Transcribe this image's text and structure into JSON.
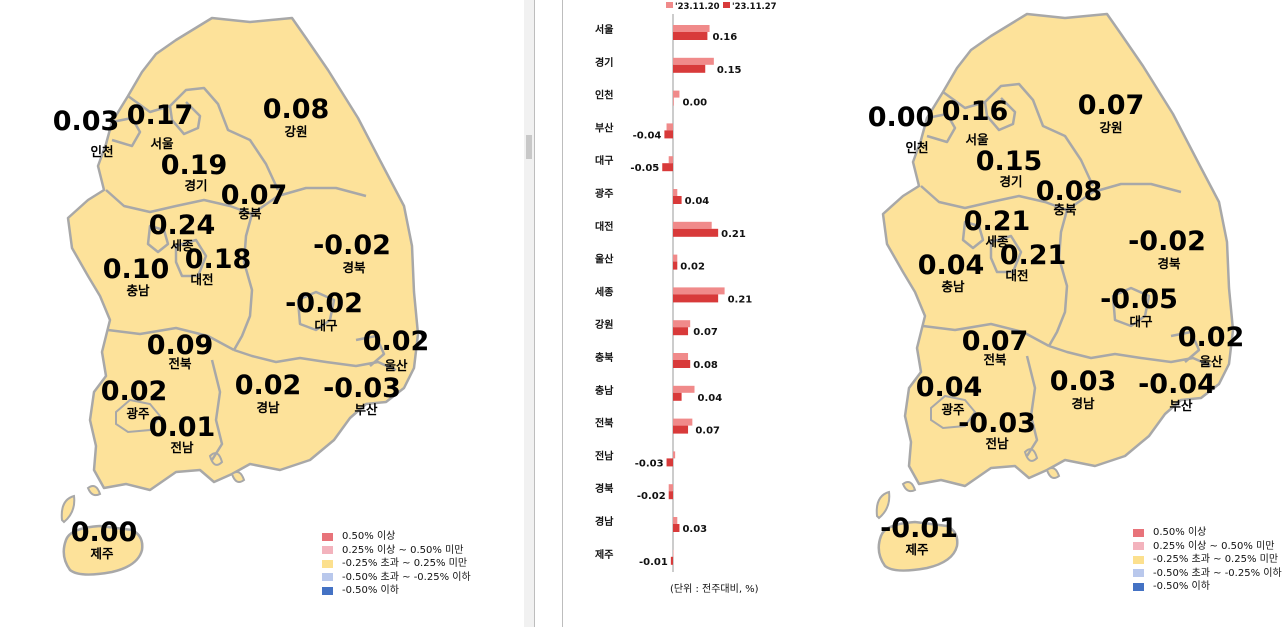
{
  "colors": {
    "land": "#fde29a",
    "border": "#a8a8a8",
    "bar_prev": "#f08a8a",
    "bar_curr": "#d83a3a",
    "legend": [
      "#e8737a",
      "#f3b3bd",
      "#fce08e",
      "#b9c8ec",
      "#4472c4"
    ]
  },
  "maps": [
    {
      "regions": [
        {
          "name": "인천",
          "value": "0.03"
        },
        {
          "name": "서울",
          "value": "0.17"
        },
        {
          "name": "경기",
          "value": "0.19"
        },
        {
          "name": "강원",
          "value": "0.08"
        },
        {
          "name": "충북",
          "value": "0.07"
        },
        {
          "name": "세종",
          "value": "0.24"
        },
        {
          "name": "대전",
          "value": "0.18"
        },
        {
          "name": "충남",
          "value": "0.10"
        },
        {
          "name": "경북",
          "value": "-0.02"
        },
        {
          "name": "대구",
          "value": "-0.02"
        },
        {
          "name": "울산",
          "value": "0.02"
        },
        {
          "name": "전북",
          "value": "0.09"
        },
        {
          "name": "광주",
          "value": "0.02"
        },
        {
          "name": "전남",
          "value": "0.01"
        },
        {
          "name": "경남",
          "value": "0.02"
        },
        {
          "name": "부산",
          "value": "-0.03"
        },
        {
          "name": "제주",
          "value": "0.00"
        }
      ]
    },
    {
      "regions": [
        {
          "name": "인천",
          "value": "0.00"
        },
        {
          "name": "서울",
          "value": "0.16"
        },
        {
          "name": "경기",
          "value": "0.15"
        },
        {
          "name": "강원",
          "value": "0.07"
        },
        {
          "name": "충북",
          "value": "0.08"
        },
        {
          "name": "세종",
          "value": "0.21"
        },
        {
          "name": "대전",
          "value": "0.21"
        },
        {
          "name": "충남",
          "value": "0.04"
        },
        {
          "name": "경북",
          "value": "-0.02"
        },
        {
          "name": "대구",
          "value": "-0.05"
        },
        {
          "name": "울산",
          "value": "0.02"
        },
        {
          "name": "전북",
          "value": "0.07"
        },
        {
          "name": "광주",
          "value": "0.04"
        },
        {
          "name": "전남",
          "value": "-0.03"
        },
        {
          "name": "경남",
          "value": "0.03"
        },
        {
          "name": "부산",
          "value": "-0.04"
        },
        {
          "name": "제주",
          "value": "-0.01"
        }
      ]
    }
  ],
  "legend": [
    "0.50% 이상",
    "0.25% 이상 ~ 0.50% 미만",
    "-0.25% 초과 ~ 0.25% 미만",
    "-0.50% 초과 ~ -0.25% 이하",
    "-0.50% 이하"
  ],
  "chart_data": {
    "type": "bar",
    "orientation": "horizontal",
    "categories": [
      "서울",
      "경기",
      "인천",
      "부산",
      "대구",
      "광주",
      "대전",
      "울산",
      "세종",
      "강원",
      "충북",
      "충남",
      "전북",
      "전남",
      "경북",
      "경남",
      "제주"
    ],
    "series": [
      {
        "name": "'23.11.20",
        "values": [
          0.17,
          0.19,
          0.03,
          -0.03,
          -0.02,
          0.02,
          0.18,
          0.02,
          0.24,
          0.08,
          0.07,
          0.1,
          0.09,
          0.01,
          -0.02,
          0.02,
          0.0
        ]
      },
      {
        "name": "'23.11.27",
        "values": [
          0.16,
          0.15,
          0.0,
          -0.04,
          -0.05,
          0.04,
          0.21,
          0.02,
          0.21,
          0.07,
          0.08,
          0.04,
          0.07,
          -0.03,
          -0.02,
          0.03,
          -0.01
        ]
      }
    ],
    "value_labels": [
      "0.16",
      "0.15",
      "0.00",
      "-0.04",
      "-0.05",
      "0.04",
      "0.21",
      "0.02",
      "0.21",
      "0.07",
      "0.08",
      "0.04",
      "0.07",
      "-0.03",
      "-0.02",
      "0.03",
      "-0.01"
    ],
    "unit_note": "(단위 : 전주대비, %)",
    "legend_position": "top"
  }
}
